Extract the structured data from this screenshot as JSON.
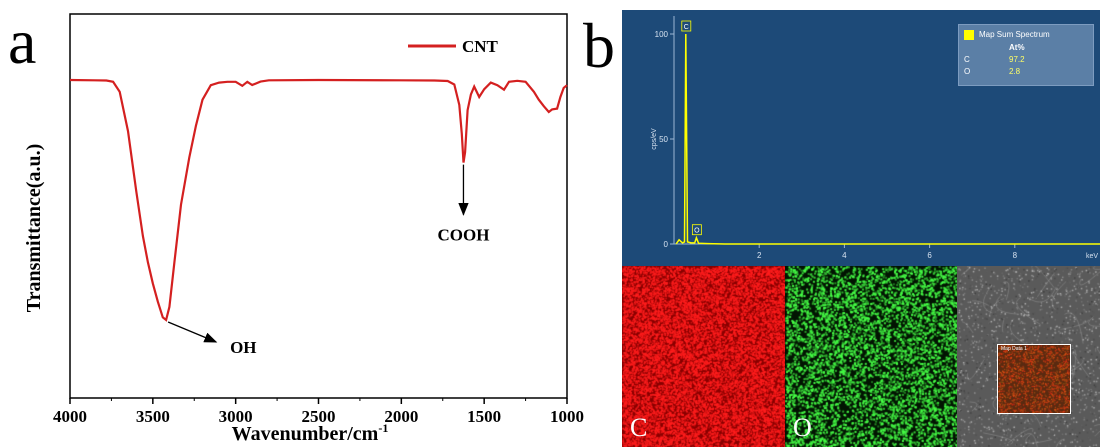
{
  "panels": {
    "a": "a",
    "b": "b"
  },
  "chart_data": [
    {
      "type": "line",
      "xlabel": "Wavenumber/cm",
      "xlabel_sup": "-1",
      "ylabel": "Transmittance(a.u.)",
      "xlim": [
        4000,
        1000
      ],
      "x_ticks": [
        "4000",
        "3500",
        "3000",
        "2500",
        "2000",
        "1500",
        "1000"
      ],
      "series": [
        {
          "name": "CNT",
          "color": "#d42020",
          "points": [
            [
              4000,
              97.5
            ],
            [
              3850,
              97.4
            ],
            [
              3780,
              97.3
            ],
            [
              3740,
              96.8
            ],
            [
              3700,
              93
            ],
            [
              3650,
              78
            ],
            [
              3600,
              55
            ],
            [
              3560,
              38
            ],
            [
              3530,
              28
            ],
            [
              3500,
              20
            ],
            [
              3470,
              13
            ],
            [
              3440,
              7
            ],
            [
              3420,
              6
            ],
            [
              3400,
              11
            ],
            [
              3370,
              28
            ],
            [
              3330,
              50
            ],
            [
              3280,
              68
            ],
            [
              3240,
              80
            ],
            [
              3200,
              90
            ],
            [
              3150,
              95.5
            ],
            [
              3100,
              96.5
            ],
            [
              3050,
              96.8
            ],
            [
              3000,
              96.8
            ],
            [
              2960,
              95.3
            ],
            [
              2930,
              96.8
            ],
            [
              2900,
              95.6
            ],
            [
              2850,
              96.9
            ],
            [
              2800,
              97.4
            ],
            [
              2500,
              97.5
            ],
            [
              2000,
              97.4
            ],
            [
              1800,
              97.3
            ],
            [
              1720,
              97.1
            ],
            [
              1680,
              95.8
            ],
            [
              1650,
              88
            ],
            [
              1635,
              77
            ],
            [
              1625,
              66
            ],
            [
              1615,
              70
            ],
            [
              1600,
              86
            ],
            [
              1580,
              92
            ],
            [
              1560,
              95
            ],
            [
              1530,
              91
            ],
            [
              1500,
              94
            ],
            [
              1460,
              96.5
            ],
            [
              1420,
              95.5
            ],
            [
              1380,
              93.8
            ],
            [
              1350,
              96.8
            ],
            [
              1300,
              97.2
            ],
            [
              1250,
              96.8
            ],
            [
              1200,
              93
            ],
            [
              1170,
              90
            ],
            [
              1140,
              87.5
            ],
            [
              1110,
              85.3
            ],
            [
              1090,
              86.3
            ],
            [
              1060,
              86.6
            ],
            [
              1040,
              91
            ],
            [
              1020,
              94.5
            ],
            [
              1000,
              95.5
            ]
          ]
        }
      ],
      "annotations": [
        {
          "text": "OH",
          "x": 3420,
          "y": 6
        },
        {
          "text": "COOH",
          "x": 1625,
          "y": 66
        }
      ]
    },
    {
      "type": "line",
      "title": "Map Sum Spectrum",
      "ylabel": "cps/eV",
      "xlabel": "keV",
      "xlim": [
        0,
        10
      ],
      "ylim": [
        0,
        100
      ],
      "y_ticks": [
        "100",
        "50",
        "0"
      ],
      "x_ticks": [
        "2",
        "4",
        "6",
        "8"
      ],
      "peaks": [
        {
          "element": "C",
          "energy": 0.277,
          "height": 100
        },
        {
          "element": "O",
          "energy": 0.525,
          "height": 3
        }
      ],
      "composition": {
        "header": "At%",
        "rows": [
          {
            "element": "C",
            "value": "97.2"
          },
          {
            "element": "O",
            "value": "2.8"
          }
        ]
      },
      "colors": {
        "background": "#1d4a78",
        "spectrum": "#ffff00"
      }
    }
  ],
  "maps": [
    {
      "label": "C",
      "color": "#ff1a1a"
    },
    {
      "label": "O",
      "color": "#3aff3a"
    },
    {
      "label": "",
      "inset_label": "Map Data 1"
    }
  ]
}
